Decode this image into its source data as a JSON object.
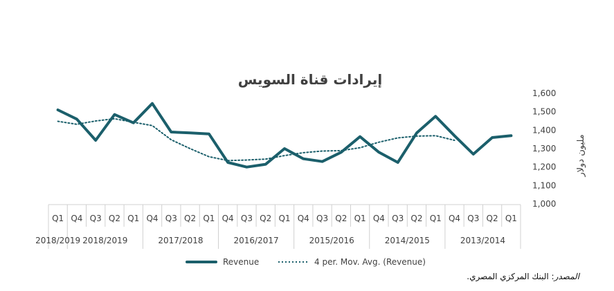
{
  "chart_data": {
    "type": "line",
    "title": "إيرادات قناة السويس",
    "ylabel": "مليون دولار",
    "ylim": [
      1000,
      1600
    ],
    "yticks": [
      "1,600",
      "1,500",
      "1,400",
      "1,300",
      "1,200",
      "1,100",
      "1,000"
    ],
    "x": [
      "Q1",
      "Q4",
      "Q3",
      "Q2",
      "Q1",
      "Q4",
      "Q3",
      "Q2",
      "Q1",
      "Q4",
      "Q3",
      "Q2",
      "Q1",
      "Q4",
      "Q3",
      "Q2",
      "Q1",
      "Q4",
      "Q3",
      "Q2",
      "Q1",
      "Q4",
      "Q3",
      "Q2",
      "Q1"
    ],
    "year_groups": [
      {
        "label": "2018/2019",
        "count": 1
      },
      {
        "label": "2018/2019",
        "count": 4
      },
      {
        "label": "2017/2018",
        "count": 4
      },
      {
        "label": "2016/2017",
        "count": 4
      },
      {
        "label": "2015/2016",
        "count": 4
      },
      {
        "label": "2014/2015",
        "count": 4
      },
      {
        "label": "2013/2014",
        "count": 4
      }
    ],
    "series": [
      {
        "name": "Revenue",
        "color": "#1b5f6b",
        "values": [
          1510,
          1460,
          1345,
          1485,
          1440,
          1545,
          1390,
          1385,
          1380,
          1225,
          1200,
          1215,
          1300,
          1245,
          1230,
          1280,
          1365,
          1280,
          1225,
          1385,
          1475,
          1370,
          1270,
          1360,
          1370
        ]
      },
      {
        "name": "4 per. Mov. Avg. (Revenue)",
        "color": "#1b5f6b",
        "dashed": true,
        "values": [
          1448,
          1432,
          1450,
          1462,
          1443,
          1425,
          1348,
          1300,
          1256,
          1235,
          1238,
          1243,
          1262,
          1278,
          1287,
          1289,
          1305,
          1335,
          1358,
          1368,
          1370,
          1345,
          null,
          null,
          null
        ]
      }
    ],
    "legend_position": "bottom",
    "grid": false
  },
  "source": {
    "label": "المصدر",
    "text": ": البنك المركزي المصري."
  }
}
